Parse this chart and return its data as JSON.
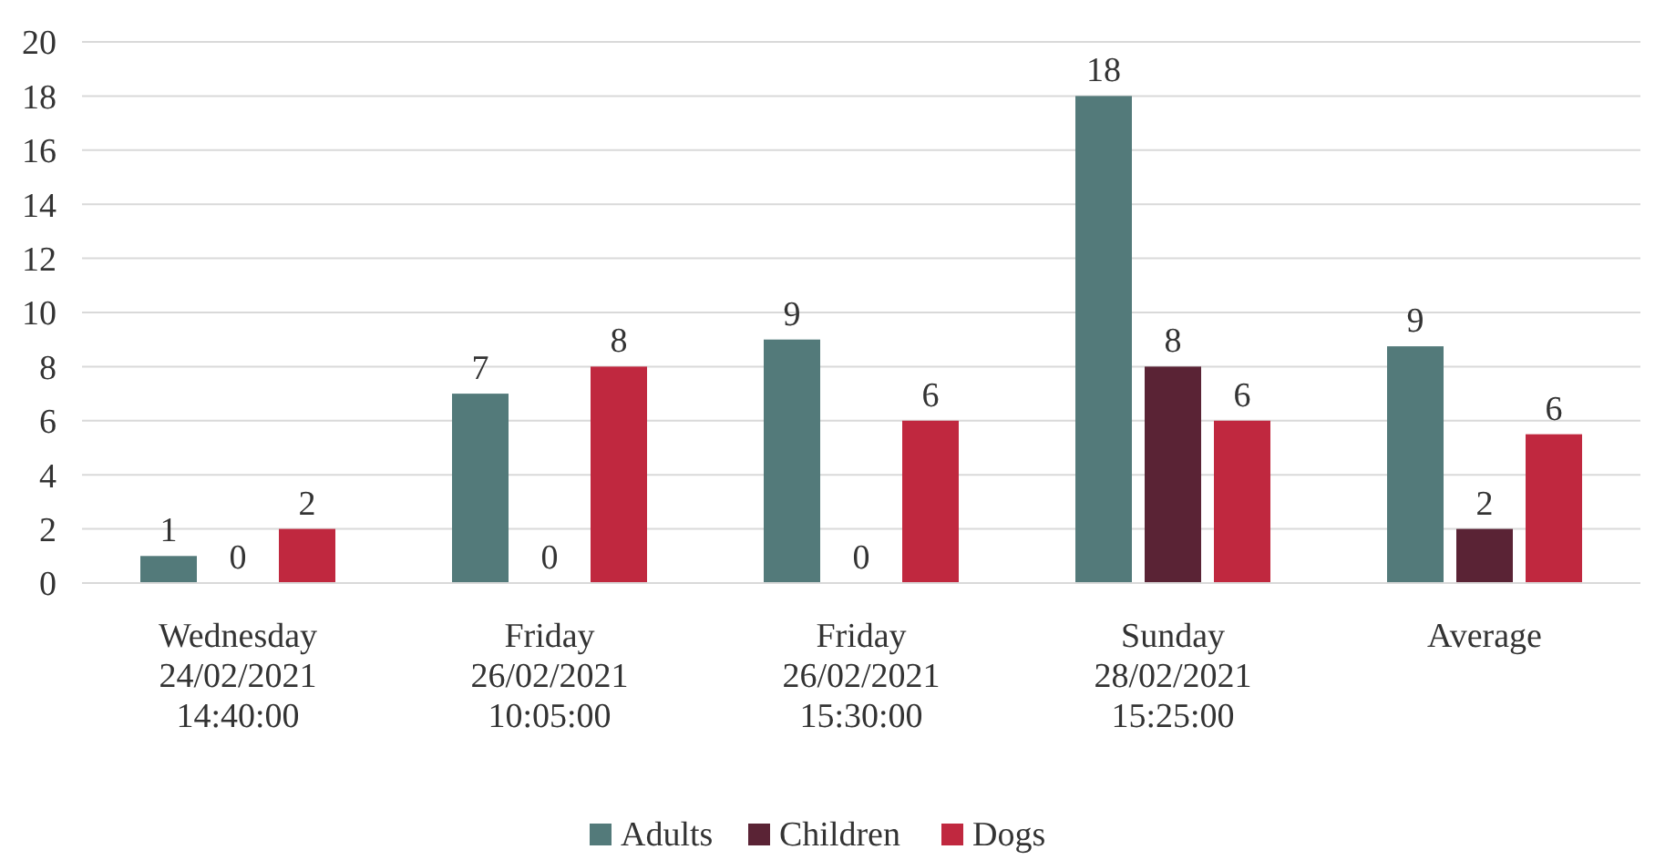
{
  "chart_data": {
    "type": "bar",
    "categories": [
      "Wednesday\n24/02/2021\n14:40:00",
      "Friday\n26/02/2021\n10:05:00",
      "Friday\n26/02/2021\n15:30:00",
      "Sunday\n28/02/2021\n15:25:00",
      "Average"
    ],
    "series": [
      {
        "name": "Adults",
        "color": "#537a7a",
        "values": [
          1,
          7,
          9,
          18,
          8.75
        ],
        "value_labels": [
          "1",
          "7",
          "9",
          "18",
          "9"
        ]
      },
      {
        "name": "Children",
        "color": "#5a2335",
        "values": [
          0,
          0,
          0,
          8,
          2
        ],
        "value_labels": [
          "0",
          "0",
          "0",
          "8",
          "2"
        ]
      },
      {
        "name": "Dogs",
        "color": "#c0283f",
        "values": [
          2,
          8,
          6,
          6,
          5.5
        ],
        "value_labels": [
          "2",
          "8",
          "6",
          "6",
          "6"
        ]
      }
    ],
    "ylim": [
      0,
      20
    ],
    "yticks": [
      0,
      2,
      4,
      6,
      8,
      10,
      12,
      14,
      16,
      18,
      20
    ],
    "grid": "y",
    "legend": "bottom"
  }
}
